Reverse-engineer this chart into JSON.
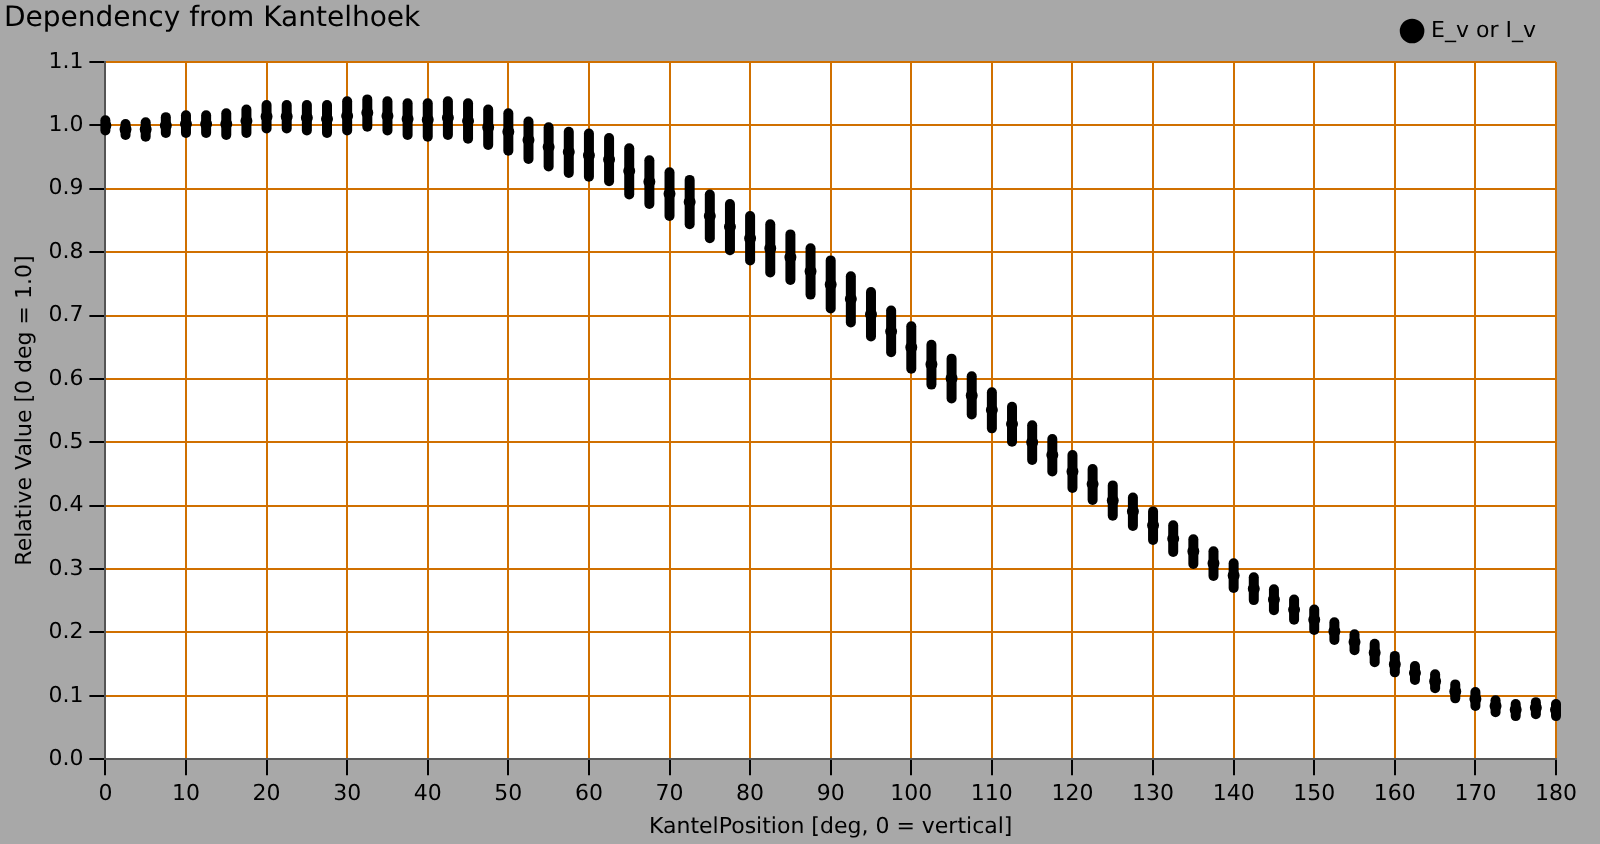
{
  "chart_data": {
    "type": "scatter",
    "title": "Dependency from Kantelhoek",
    "xlabel": "KantelPosition [deg, 0 = vertical]",
    "ylabel": "Relative Value [0 deg = 1.0]",
    "x": [
      0,
      2.5,
      5,
      7.5,
      10,
      12.5,
      15,
      17.5,
      20,
      22.5,
      25,
      27.5,
      30,
      32.5,
      35,
      37.5,
      40,
      42.5,
      45,
      47.5,
      50,
      52.5,
      55,
      57.5,
      60,
      62.5,
      65,
      67.5,
      70,
      72.5,
      75,
      77.5,
      80,
      82.5,
      85,
      87.5,
      90,
      92.5,
      95,
      97.5,
      100,
      102.5,
      105,
      107.5,
      110,
      112.5,
      115,
      117.5,
      120,
      122.5,
      125,
      127.5,
      130,
      132.5,
      135,
      137.5,
      140,
      142.5,
      145,
      147.5,
      150,
      152.5,
      155,
      157.5,
      160,
      162.5,
      165,
      167.5,
      170,
      172.5,
      175,
      177.5,
      180
    ],
    "series": [
      {
        "name": "E_v or I_v",
        "color": "#000000",
        "values": [
          1.0,
          0.994,
          0.994,
          1.0,
          1.002,
          1.002,
          1.002,
          1.007,
          1.014,
          1.014,
          1.012,
          1.01,
          1.015,
          1.02,
          1.015,
          1.01,
          1.009,
          1.012,
          1.007,
          0.997,
          0.99,
          0.977,
          0.966,
          0.958,
          0.953,
          0.946,
          0.928,
          0.911,
          0.892,
          0.879,
          0.857,
          0.84,
          0.822,
          0.806,
          0.792,
          0.77,
          0.749,
          0.726,
          0.702,
          0.675,
          0.65,
          0.623,
          0.601,
          0.574,
          0.551,
          0.529,
          0.5,
          0.48,
          0.454,
          0.434,
          0.408,
          0.391,
          0.369,
          0.348,
          0.328,
          0.309,
          0.29,
          0.269,
          0.252,
          0.236,
          0.22,
          0.202,
          0.185,
          0.168,
          0.15,
          0.136,
          0.123,
          0.107,
          0.095,
          0.084,
          0.078,
          0.081,
          0.078
        ],
        "errors": [
          [
            0.992,
            1.008
          ],
          [
            0.985,
            1.002
          ],
          [
            0.982,
            1.005
          ],
          [
            0.988,
            1.013
          ],
          [
            0.988,
            1.016
          ],
          [
            0.988,
            1.016
          ],
          [
            0.985,
            1.019
          ],
          [
            0.988,
            1.025
          ],
          [
            0.995,
            1.032
          ],
          [
            0.995,
            1.032
          ],
          [
            0.992,
            1.032
          ],
          [
            0.988,
            1.032
          ],
          [
            0.992,
            1.038
          ],
          [
            0.998,
            1.041
          ],
          [
            0.992,
            1.038
          ],
          [
            0.985,
            1.035
          ],
          [
            0.982,
            1.035
          ],
          [
            0.985,
            1.038
          ],
          [
            0.979,
            1.035
          ],
          [
            0.969,
            1.025
          ],
          [
            0.96,
            1.019
          ],
          [
            0.947,
            1.006
          ],
          [
            0.935,
            0.997
          ],
          [
            0.925,
            0.99
          ],
          [
            0.919,
            0.987
          ],
          [
            0.912,
            0.98
          ],
          [
            0.891,
            0.964
          ],
          [
            0.876,
            0.945
          ],
          [
            0.857,
            0.926
          ],
          [
            0.844,
            0.914
          ],
          [
            0.822,
            0.891
          ],
          [
            0.803,
            0.876
          ],
          [
            0.787,
            0.857
          ],
          [
            0.768,
            0.844
          ],
          [
            0.756,
            0.828
          ],
          [
            0.733,
            0.806
          ],
          [
            0.711,
            0.787
          ],
          [
            0.689,
            0.762
          ],
          [
            0.667,
            0.737
          ],
          [
            0.642,
            0.708
          ],
          [
            0.616,
            0.683
          ],
          [
            0.591,
            0.654
          ],
          [
            0.569,
            0.632
          ],
          [
            0.544,
            0.604
          ],
          [
            0.522,
            0.579
          ],
          [
            0.501,
            0.556
          ],
          [
            0.472,
            0.527
          ],
          [
            0.454,
            0.505
          ],
          [
            0.428,
            0.48
          ],
          [
            0.409,
            0.458
          ],
          [
            0.384,
            0.432
          ],
          [
            0.368,
            0.413
          ],
          [
            0.346,
            0.391
          ],
          [
            0.327,
            0.369
          ],
          [
            0.308,
            0.347
          ],
          [
            0.289,
            0.328
          ],
          [
            0.27,
            0.309
          ],
          [
            0.251,
            0.287
          ],
          [
            0.235,
            0.268
          ],
          [
            0.22,
            0.252
          ],
          [
            0.204,
            0.236
          ],
          [
            0.188,
            0.216
          ],
          [
            0.172,
            0.197
          ],
          [
            0.153,
            0.182
          ],
          [
            0.137,
            0.163
          ],
          [
            0.125,
            0.147
          ],
          [
            0.112,
            0.134
          ],
          [
            0.096,
            0.118
          ],
          [
            0.084,
            0.106
          ],
          [
            0.074,
            0.093
          ],
          [
            0.068,
            0.087
          ],
          [
            0.071,
            0.09
          ],
          [
            0.068,
            0.087
          ]
        ]
      }
    ],
    "xlim": [
      0,
      180
    ],
    "xticks": [
      0,
      10,
      20,
      30,
      40,
      50,
      60,
      70,
      80,
      90,
      100,
      110,
      120,
      130,
      140,
      150,
      160,
      170,
      180
    ],
    "ylim": [
      0,
      1.1
    ],
    "yticks": [
      {
        "value": 0,
        "label": "0.0"
      },
      0.1,
      0.2,
      0.3,
      0.4,
      0.5,
      0.6,
      0.7,
      0.8,
      0.9,
      {
        "value": 1,
        "label": "1.0"
      },
      1.1
    ],
    "grid": true,
    "legend": "top right",
    "marker": "circle"
  }
}
